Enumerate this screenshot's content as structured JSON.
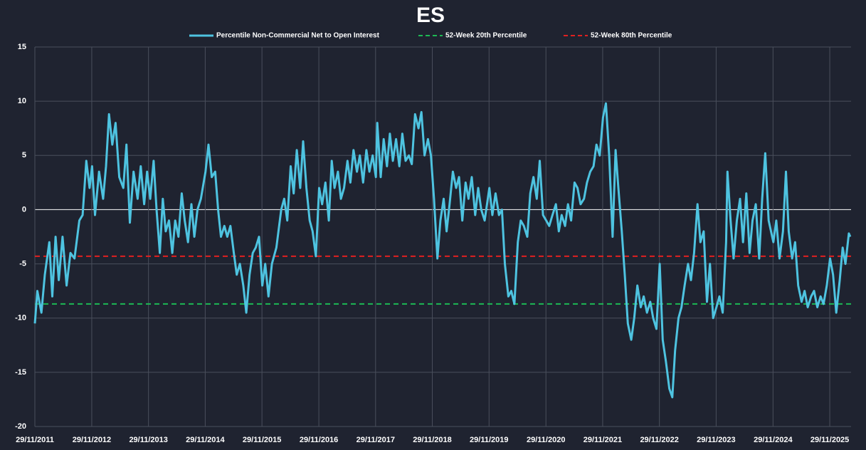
{
  "chart_data": {
    "type": "line",
    "title": "ES",
    "grid": true,
    "xlim": [
      "29/11/2011",
      "15/04/2026"
    ],
    "xticks": [
      "29/11/2011",
      "29/11/2012",
      "29/11/2013",
      "29/11/2014",
      "29/11/2015",
      "29/11/2016",
      "29/11/2017",
      "29/11/2018",
      "29/11/2019",
      "29/11/2020",
      "29/11/2021",
      "29/11/2022",
      "29/11/2023",
      "29/11/2024",
      "29/11/2025"
    ],
    "ylim": [
      -20,
      15
    ],
    "yticks": [
      -20,
      -15,
      -10,
      -5,
      0,
      5,
      10,
      15
    ],
    "x": [
      "29/11/2011",
      "15/12/2011",
      "10/01/2012",
      "01/02/2012",
      "01/03/2012",
      "20/03/2012",
      "10/04/2012",
      "01/05/2012",
      "25/05/2012",
      "20/06/2012",
      "15/07/2012",
      "10/08/2012",
      "10/09/2012",
      "01/10/2012",
      "25/10/2012",
      "15/11/2012",
      "01/12/2012",
      "20/12/2012",
      "15/01/2013",
      "10/02/2013",
      "01/03/2013",
      "20/03/2013",
      "10/04/2013",
      "01/05/2013",
      "25/05/2013",
      "20/06/2013",
      "10/07/2013",
      "01/08/2013",
      "25/08/2013",
      "20/09/2013",
      "10/10/2013",
      "01/11/2013",
      "20/11/2013",
      "10/12/2013",
      "01/01/2014",
      "20/01/2014",
      "10/02/2014",
      "01/03/2014",
      "20/03/2014",
      "10/04/2014",
      "01/05/2014",
      "20/05/2014",
      "10/06/2014",
      "01/07/2014",
      "20/07/2014",
      "10/08/2014",
      "01/09/2014",
      "20/09/2014",
      "10/10/2014",
      "01/11/2014",
      "01/12/2014",
      "20/12/2014",
      "10/01/2015",
      "01/02/2015",
      "20/02/2015",
      "10/03/2015",
      "01/04/2015",
      "20/04/2015",
      "10/05/2015",
      "01/06/2015",
      "20/06/2015",
      "10/07/2015",
      "01/08/2015",
      "20/08/2015",
      "10/09/2015",
      "01/10/2015",
      "20/10/2015",
      "10/11/2015",
      "01/12/2015",
      "20/12/2015",
      "10/01/2016",
      "01/02/2016",
      "01/03/2016",
      "01/04/2016",
      "20/04/2016",
      "10/05/2016",
      "01/06/2016",
      "20/06/2016",
      "10/07/2016",
      "01/08/2016",
      "20/08/2016",
      "10/09/2016",
      "01/10/2016",
      "20/10/2016",
      "10/11/2016",
      "01/12/2016",
      "20/12/2016",
      "10/01/2017",
      "01/02/2017",
      "20/02/2017",
      "10/03/2017",
      "01/04/2017",
      "20/04/2017",
      "10/05/2017",
      "01/06/2017",
      "20/06/2017",
      "10/07/2017",
      "01/08/2017",
      "20/08/2017",
      "10/09/2017",
      "01/10/2017",
      "20/10/2017",
      "10/11/2017",
      "01/12/2017",
      "10/12/2017",
      "01/01/2018",
      "20/01/2018",
      "10/02/2018",
      "01/03/2018",
      "20/03/2018",
      "10/04/2018",
      "01/05/2018",
      "20/05/2018",
      "10/06/2018",
      "01/07/2018",
      "20/07/2018",
      "10/08/2018",
      "01/09/2018",
      "20/09/2018",
      "10/10/2018",
      "01/11/2018",
      "20/11/2018",
      "10/12/2018",
      "01/01/2019",
      "20/01/2019",
      "10/02/2019",
      "01/03/2019",
      "20/03/2019",
      "10/04/2019",
      "01/05/2019",
      "20/05/2019",
      "10/06/2019",
      "01/07/2019",
      "20/07/2019",
      "10/08/2019",
      "01/09/2019",
      "20/09/2019",
      "10/10/2019",
      "01/11/2019",
      "01/12/2019",
      "20/12/2019",
      "10/01/2020",
      "01/02/2020",
      "20/02/2020",
      "10/03/2020",
      "01/04/2020",
      "20/04/2020",
      "10/05/2020",
      "01/06/2020",
      "20/06/2020",
      "10/07/2020",
      "01/08/2020",
      "20/08/2020",
      "10/09/2020",
      "01/10/2020",
      "20/10/2020",
      "10/11/2020",
      "01/12/2020",
      "20/12/2020",
      "10/01/2021",
      "01/02/2021",
      "20/02/2021",
      "10/03/2021",
      "01/04/2021",
      "20/04/2021",
      "10/05/2021",
      "01/06/2021",
      "20/06/2021",
      "10/07/2021",
      "01/08/2021",
      "20/08/2021",
      "10/09/2021",
      "01/10/2021",
      "20/10/2021",
      "10/11/2021",
      "01/12/2021",
      "20/12/2021",
      "10/01/2022",
      "01/02/2022",
      "20/02/2022",
      "10/03/2022",
      "01/04/2022",
      "20/04/2022",
      "10/05/2022",
      "01/06/2022",
      "20/06/2022",
      "10/07/2022",
      "01/08/2022",
      "20/08/2022",
      "10/09/2022",
      "01/10/2022",
      "20/10/2022",
      "10/11/2022",
      "01/12/2022",
      "20/12/2022",
      "10/01/2023",
      "01/02/2023",
      "20/02/2023",
      "10/03/2023",
      "01/04/2023",
      "20/04/2023",
      "10/05/2023",
      "01/06/2023",
      "20/06/2023",
      "10/07/2023",
      "01/08/2023",
      "20/08/2023",
      "10/09/2023",
      "01/10/2023",
      "20/10/2023",
      "10/11/2023",
      "01/12/2023",
      "20/12/2023",
      "10/01/2024",
      "01/02/2024",
      "10/02/2024",
      "01/03/2024",
      "20/03/2024",
      "10/04/2024",
      "01/05/2024",
      "20/05/2024",
      "10/06/2024",
      "01/07/2024",
      "20/07/2024",
      "10/08/2024",
      "01/09/2024",
      "20/09/2024",
      "10/10/2024",
      "01/11/2024",
      "01/12/2024",
      "20/12/2024",
      "10/01/2025",
      "01/02/2025",
      "20/02/2025",
      "10/03/2025",
      "01/04/2025",
      "20/04/2025",
      "10/05/2025",
      "01/06/2025",
      "20/06/2025",
      "10/07/2025",
      "01/08/2025",
      "20/08/2025",
      "10/09/2025",
      "01/10/2025",
      "20/10/2025",
      "10/11/2025",
      "01/12/2025",
      "20/12/2025",
      "10/01/2026",
      "01/02/2026",
      "20/02/2026",
      "10/03/2026",
      "01/04/2026",
      "10/04/2026"
    ],
    "series": [
      {
        "name": "Percentile Non-Commercial Net to Open Interest",
        "color": "#4ec3e0",
        "values": [
          -10.5,
          -7.5,
          -9.5,
          -6,
          -3,
          -8,
          -2.5,
          -6.5,
          -2.5,
          -7,
          -4,
          -4.5,
          -1,
          -0.5,
          4.5,
          2,
          4,
          -0.5,
          3.5,
          1,
          4,
          8.8,
          6,
          8,
          3,
          2,
          6,
          -1.2,
          3.5,
          1,
          4,
          0.5,
          3.5,
          1,
          4.5,
          0,
          -4,
          1,
          -2,
          -1,
          -4,
          -1,
          -2.5,
          1.5,
          -1,
          -3,
          0.5,
          -2.5,
          0,
          1,
          3.5,
          6,
          3,
          3.5,
          0,
          -2.5,
          -1.5,
          -2.5,
          -1.5,
          -4,
          -6,
          -5,
          -7,
          -9.5,
          -6,
          -4,
          -3.5,
          -2.5,
          -7,
          -5,
          -8,
          -5,
          -3.5,
          0,
          1,
          -1,
          4,
          1.5,
          5.5,
          2,
          6.3,
          2,
          -1,
          -2,
          -4.3,
          2,
          0.5,
          2.5,
          -1,
          4.5,
          2,
          3.5,
          1,
          2,
          4.5,
          2.5,
          5.5,
          3.5,
          5,
          2.5,
          5.5,
          3.5,
          5,
          3,
          8,
          3,
          6.5,
          4,
          7,
          4.5,
          6.5,
          4,
          7,
          4.5,
          5,
          4.2,
          8.8,
          7.5,
          9,
          5,
          6.5,
          5,
          1,
          -4.5,
          -1,
          1,
          -2,
          0.5,
          3.5,
          2,
          3,
          -1,
          2.5,
          1,
          3,
          -0.5,
          2,
          0,
          -1,
          2,
          -0.5,
          1.5,
          -0.5,
          0,
          -5,
          -8,
          -7.5,
          -8.7,
          -3,
          -1,
          -1.5,
          -2.5,
          1.5,
          3,
          1,
          4.5,
          -0.5,
          -1,
          -1.5,
          -0.5,
          0.5,
          -2,
          -0.5,
          -1.5,
          0.5,
          -1,
          2.5,
          2,
          0.5,
          1,
          2.5,
          3.5,
          4,
          6,
          5,
          8.5,
          9.8,
          5,
          -2.5,
          5.5,
          2,
          -2,
          -6,
          -10.5,
          -12,
          -10,
          -7,
          -9,
          -8,
          -9.5,
          -8.5,
          -10,
          -11,
          -5,
          -12,
          -14,
          -16.5,
          -17.3,
          -13,
          -10,
          -9,
          -7,
          -5,
          -6.5,
          -4,
          0.5,
          -3,
          -2,
          -8.5,
          -5,
          -10,
          -9,
          -8,
          -9.5,
          -3,
          3.5,
          -1,
          -4.5,
          -1,
          1,
          -3,
          1.5,
          -4,
          -1,
          0.5,
          -4.5,
          1,
          5.2,
          -1,
          -3,
          -1,
          -4.5,
          -2,
          3.5,
          -2,
          -4.5,
          -3,
          -7,
          -8.5,
          -7.5,
          -9,
          -8,
          -7.5,
          -9,
          -8,
          -8.7,
          -7,
          -4.5,
          -6,
          -9.5,
          -6.5,
          -3.5,
          -5,
          -2.2,
          -2.5
        ]
      }
    ],
    "reference_lines": [
      {
        "name": "52-Week 20th Percentile",
        "color": "#1db954",
        "value": -8.7
      },
      {
        "name": "52-Week 80th Percentile",
        "color": "#e02020",
        "value": -4.3
      }
    ]
  }
}
